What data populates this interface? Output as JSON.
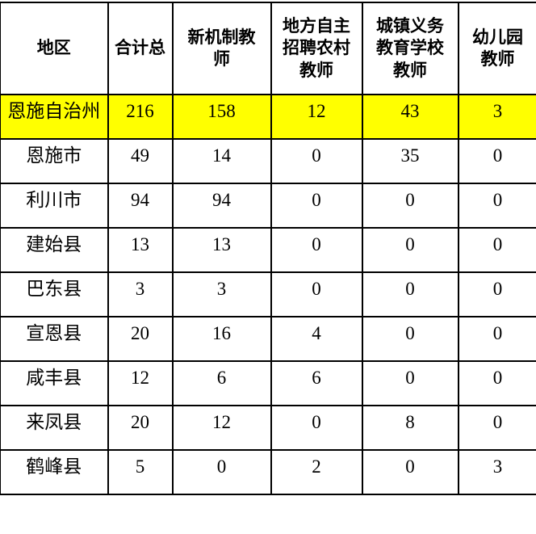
{
  "page": {
    "background_color": "#ffffff"
  },
  "table": {
    "border_color": "#000000",
    "highlight_color": "#ffff00",
    "columns": [
      "地区",
      "合计总",
      "新机制教\n师",
      "地方自主\n招聘农村\n教师",
      "城镇义务\n教育学校\n教师",
      "幼儿园\n教师"
    ],
    "rows": [
      {
        "region": "恩施自治州",
        "values": [
          "216",
          "158",
          "12",
          "43",
          "3"
        ],
        "highlighted": true
      },
      {
        "region": "恩施市",
        "values": [
          "49",
          "14",
          "0",
          "35",
          "0"
        ],
        "highlighted": false
      },
      {
        "region": "利川市",
        "values": [
          "94",
          "94",
          "0",
          "0",
          "0"
        ],
        "highlighted": false
      },
      {
        "region": "建始县",
        "values": [
          "13",
          "13",
          "0",
          "0",
          "0"
        ],
        "highlighted": false
      },
      {
        "region": "巴东县",
        "values": [
          "3",
          "3",
          "0",
          "0",
          "0"
        ],
        "highlighted": false
      },
      {
        "region": "宣恩县",
        "values": [
          "20",
          "16",
          "4",
          "0",
          "0"
        ],
        "highlighted": false
      },
      {
        "region": "咸丰县",
        "values": [
          "12",
          "6",
          "6",
          "0",
          "0"
        ],
        "highlighted": false
      },
      {
        "region": "来凤县",
        "values": [
          "20",
          "12",
          "0",
          "8",
          "0"
        ],
        "highlighted": false
      },
      {
        "region": "鹤峰县",
        "values": [
          "5",
          "0",
          "2",
          "0",
          "3"
        ],
        "highlighted": false
      }
    ]
  }
}
